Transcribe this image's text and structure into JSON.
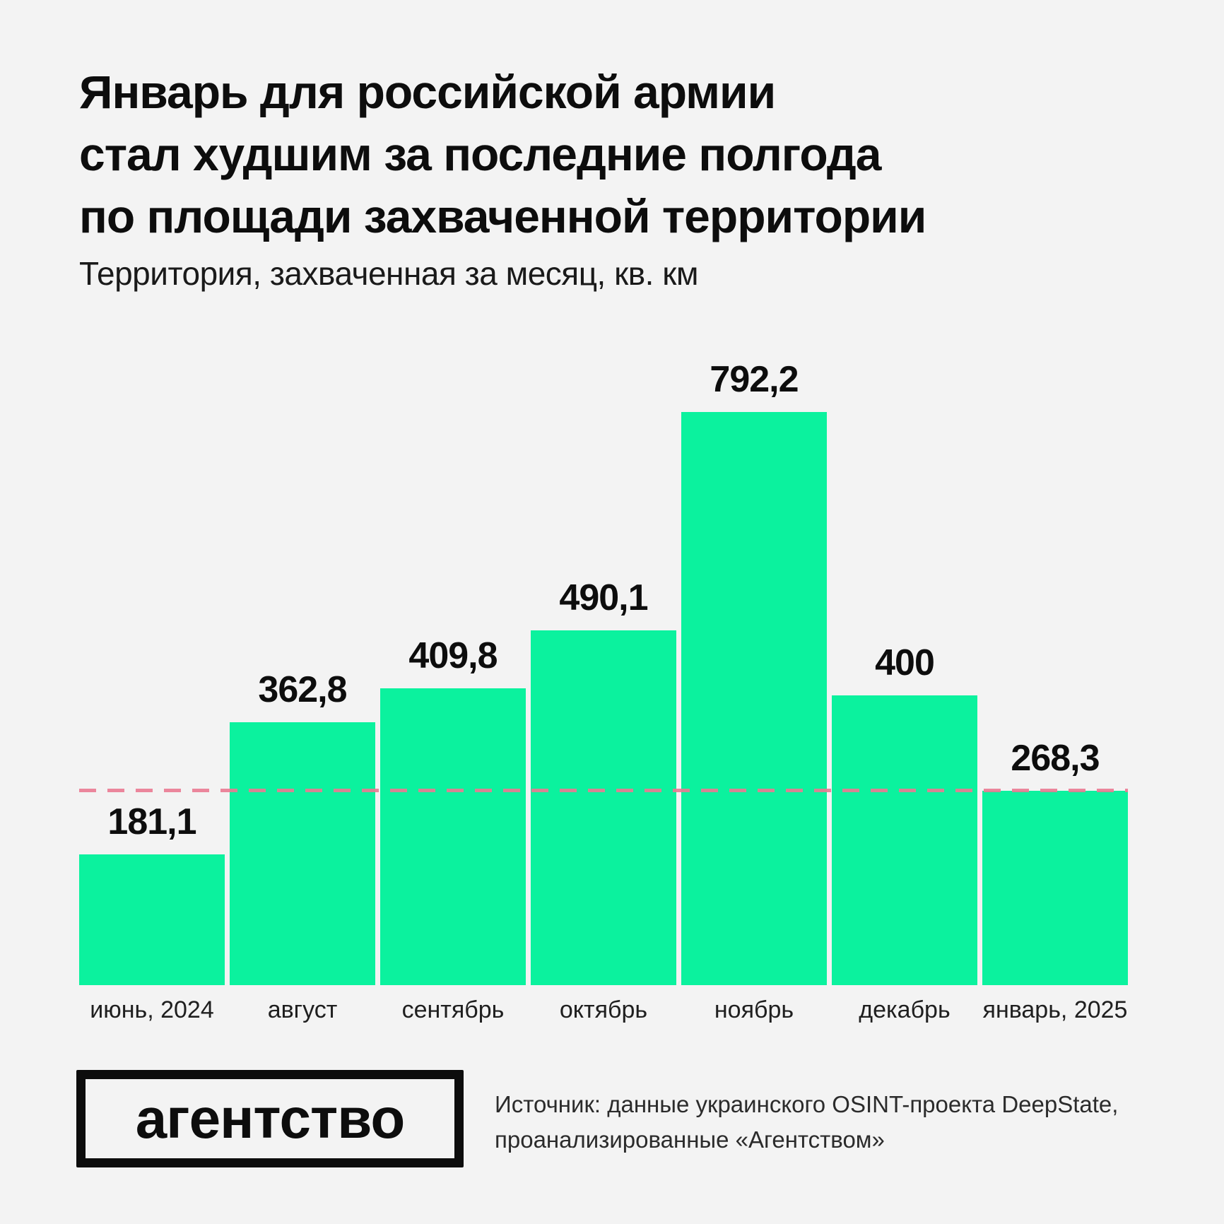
{
  "header": {
    "title_lines": [
      "Январь для российской армии",
      "стал худшим за последние полгода",
      "по площади захваченной территории"
    ],
    "subtitle": "Территория, захваченная за месяц, кв. км"
  },
  "chart_data": {
    "type": "bar",
    "title": "Январь для российской армии стал худшим за последние полгода по площади захваченной территории",
    "subtitle": "Территория, захваченная за месяц, кв. км",
    "unit": "кв. км",
    "categories": [
      "июнь, 2024",
      "август",
      "сентябрь",
      "октябрь",
      "ноябрь",
      "декабрь",
      "январь, 2025"
    ],
    "values": [
      181.1,
      362.8,
      409.8,
      490.1,
      792.2,
      400,
      268.3
    ],
    "value_labels": [
      "181,1",
      "362,8",
      "409,8",
      "490,1",
      "792,2",
      "400",
      "268,3"
    ],
    "ylim": [
      0,
      873
    ],
    "grid": false,
    "legend": false,
    "bar_color": "#0BF29E",
    "reference_line": {
      "value": 268.3,
      "style": "dashed",
      "color": "#EA7A92"
    }
  },
  "footer": {
    "logo_text": "агентство",
    "source_lines": [
      "Источник: данные украинского OSINT-проекта DeepState,",
      "проанализированные «Агентством»"
    ]
  },
  "colors": {
    "background": "#F3F3F3",
    "bar": "#0BF29E",
    "reference": "#EA7A92",
    "text": "#0D0D0D"
  }
}
